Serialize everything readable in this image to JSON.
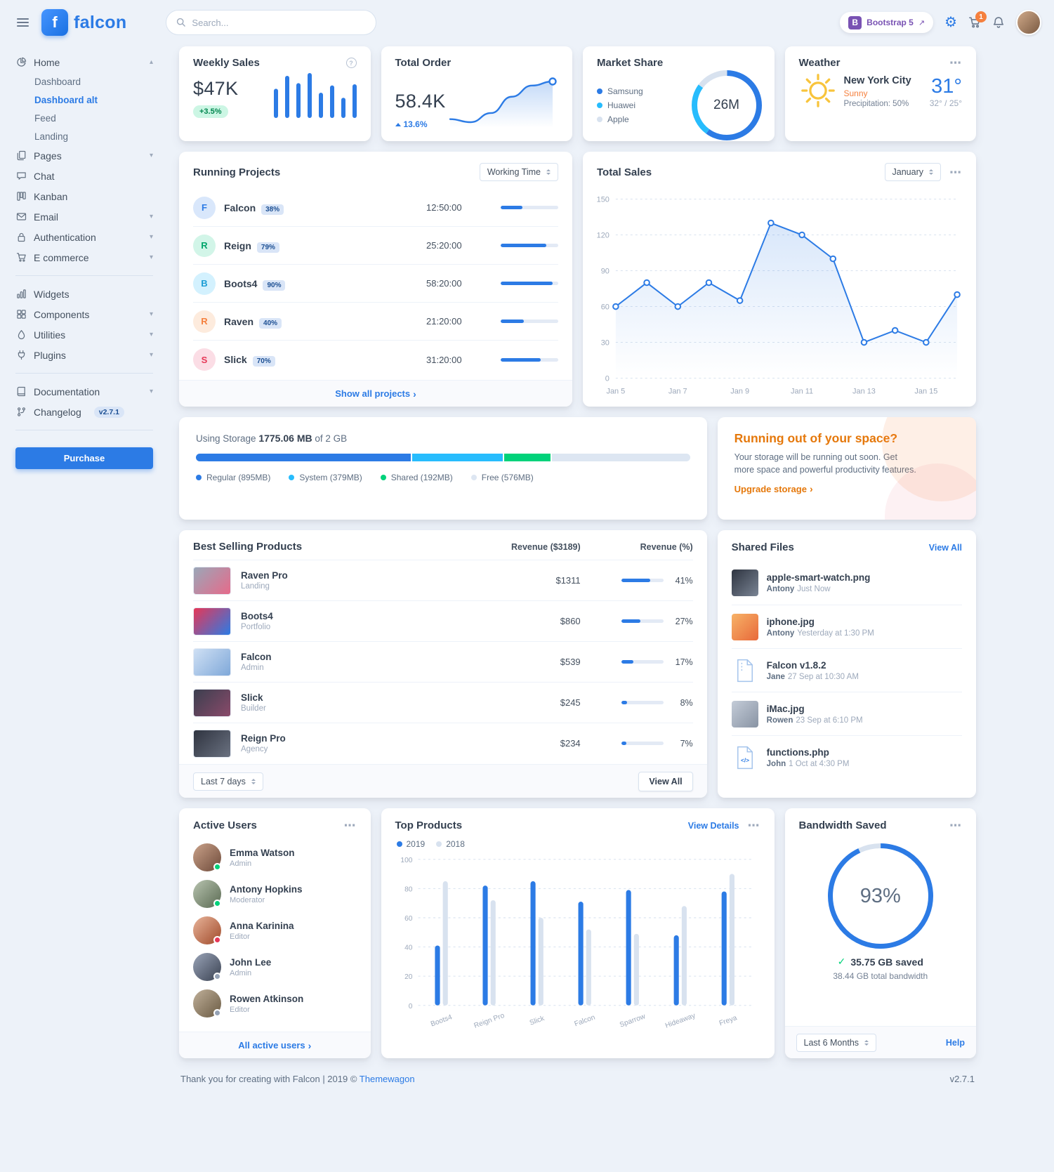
{
  "colors": {
    "primary": "#2c7be5",
    "success": "#00d27a",
    "info": "#27bcfd",
    "warning": "#f5803e",
    "danger": "#e63757",
    "gray": "#d8e2ef",
    "body_bg": "#edf2f9"
  },
  "navbar": {
    "brand": "falcon",
    "search": {
      "placeholder": "Search..."
    },
    "bootstrap_badge": {
      "b": "B",
      "label": "Bootstrap 5"
    },
    "cart_count": "1"
  },
  "sidebar": {
    "purchase_label": "Purchase",
    "items": [
      {
        "label": "Home",
        "icon": "chart-pie-icon",
        "chevron": "up",
        "active": true,
        "children": [
          {
            "label": "Dashboard",
            "active": false
          },
          {
            "label": "Dashboard alt",
            "active": true
          },
          {
            "label": "Feed",
            "active": false
          },
          {
            "label": "Landing",
            "active": false
          }
        ]
      },
      {
        "label": "Pages",
        "icon": "pages-icon",
        "chevron": "down"
      },
      {
        "label": "Chat",
        "icon": "chat-icon"
      },
      {
        "label": "Kanban",
        "icon": "kanban-icon"
      },
      {
        "label": "Email",
        "icon": "email-icon",
        "chevron": "down"
      },
      {
        "label": "Authentication",
        "icon": "lock-icon",
        "chevron": "down"
      },
      {
        "label": "E commerce",
        "icon": "cart-icon",
        "chevron": "down",
        "divider_after": true
      },
      {
        "label": "Widgets",
        "icon": "widgets-icon"
      },
      {
        "label": "Components",
        "icon": "components-icon",
        "chevron": "down"
      },
      {
        "label": "Utilities",
        "icon": "utilities-icon",
        "chevron": "down"
      },
      {
        "label": "Plugins",
        "icon": "plugins-icon",
        "chevron": "down",
        "divider_after": true
      },
      {
        "label": "Documentation",
        "icon": "docs-icon",
        "chevron": "down"
      },
      {
        "label": "Changelog",
        "icon": "changelog-icon",
        "badge": "v2.7.1",
        "divider_after": true
      }
    ]
  },
  "cards": {
    "weekly_sales": {
      "title": "Weekly Sales",
      "value": "$47K",
      "badge": "+3.5%"
    },
    "total_order": {
      "title": "Total Order",
      "value": "58.4K",
      "delta": "13.6%"
    },
    "market_share": {
      "title": "Market Share",
      "center": "26M",
      "legend": [
        {
          "label": "Samsung",
          "color": "#2c7be5"
        },
        {
          "label": "Huawei",
          "color": "#27bcfd"
        },
        {
          "label": "Apple",
          "color": "#d8e2ef"
        }
      ]
    },
    "weather": {
      "title": "Weather",
      "city": "New York City",
      "condition": "Sunny",
      "precipitation": "Precipitation: 50%",
      "temp": "31°",
      "range": "32° / 25°"
    },
    "running_projects": {
      "title": "Running Projects",
      "select": "Working Time",
      "footer_link": "Show all projects",
      "projects": [
        {
          "initial": "F",
          "name": "Falcon",
          "pct_label": "38%",
          "progress": 38,
          "time": "12:50:00",
          "color": "#2c7be5",
          "bg": "#d9e7fb"
        },
        {
          "initial": "R",
          "name": "Reign",
          "pct_label": "79%",
          "progress": 79,
          "time": "25:20:00",
          "color": "#00a56b",
          "bg": "#d2f5e8"
        },
        {
          "initial": "B",
          "name": "Boots4",
          "pct_label": "90%",
          "progress": 90,
          "time": "58:20:00",
          "color": "#1b9dd4",
          "bg": "#d3f1fe"
        },
        {
          "initial": "R",
          "name": "Raven",
          "pct_label": "40%",
          "progress": 40,
          "time": "21:20:00",
          "color": "#f5803e",
          "bg": "#fdebdd"
        },
        {
          "initial": "S",
          "name": "Slick",
          "pct_label": "70%",
          "progress": 70,
          "time": "31:20:00",
          "color": "#e63757",
          "bg": "#fbdde5"
        }
      ]
    },
    "total_sales": {
      "title": "Total Sales",
      "select": "January"
    },
    "storage": {
      "label_prefix": "Using Storage",
      "used": "1775.06 MB",
      "label_suffix": "of 2 GB",
      "segments": [
        {
          "label": "Regular (895MB)",
          "mb": 895,
          "color": "#2c7be5"
        },
        {
          "label": "System (379MB)",
          "mb": 379,
          "color": "#27bcfd"
        },
        {
          "label": "Shared (192MB)",
          "mb": 192,
          "color": "#00d27a"
        },
        {
          "label": "Free (576MB)",
          "mb": 576,
          "color": "#dde6f2"
        }
      ]
    },
    "space_ad": {
      "title": "Running out of your space?",
      "body": "Your storage will be running out soon. Get more space and powerful productivity features.",
      "link": "Upgrade storage"
    },
    "best_selling": {
      "title": "Best Selling Products",
      "col_revenue": "Revenue ($3189)",
      "col_pct": "Revenue (%)",
      "select": "Last 7 days",
      "view_all": "View All",
      "products": [
        {
          "name": "Raven Pro",
          "category": "Landing",
          "revenue": "$1311",
          "pct": 41,
          "pct_label": "41%"
        },
        {
          "name": "Boots4",
          "category": "Portfolio",
          "revenue": "$860",
          "pct": 27,
          "pct_label": "27%"
        },
        {
          "name": "Falcon",
          "category": "Admin",
          "revenue": "$539",
          "pct": 17,
          "pct_label": "17%"
        },
        {
          "name": "Slick",
          "category": "Builder",
          "revenue": "$245",
          "pct": 8,
          "pct_label": "8%"
        },
        {
          "name": "Reign Pro",
          "category": "Agency",
          "revenue": "$234",
          "pct": 7,
          "pct_label": "7%"
        }
      ]
    },
    "shared_files": {
      "title": "Shared Files",
      "view_all": "View All",
      "files": [
        {
          "name": "apple-smart-watch.png",
          "user": "Antony",
          "time": "Just Now",
          "thumb": "photo-dark"
        },
        {
          "name": "iphone.jpg",
          "user": "Antony",
          "time": "Yesterday at 1:30 PM",
          "thumb": "photo-orange"
        },
        {
          "name": "Falcon v1.8.2",
          "user": "Jane",
          "time": "27 Sep at 10:30 AM",
          "thumb": "zip"
        },
        {
          "name": "iMac.jpg",
          "user": "Rowen",
          "time": "23 Sep at 6:10 PM",
          "thumb": "photo-gray"
        },
        {
          "name": "functions.php",
          "user": "John",
          "time": "1 Oct at 4:30 PM",
          "thumb": "code"
        }
      ]
    },
    "active_users": {
      "title": "Active Users",
      "footer_link": "All active users",
      "users": [
        {
          "name": "Emma Watson",
          "role": "Admin",
          "status": "online"
        },
        {
          "name": "Antony Hopkins",
          "role": "Moderator",
          "status": "online"
        },
        {
          "name": "Anna Karinina",
          "role": "Editor",
          "status": "busy"
        },
        {
          "name": "John Lee",
          "role": "Admin",
          "status": "offline"
        },
        {
          "name": "Rowen Atkinson",
          "role": "Editor",
          "status": "offline"
        }
      ]
    },
    "top_products": {
      "title": "Top Products",
      "view_details": "View Details"
    },
    "bandwidth": {
      "title": "Bandwidth Saved",
      "pct_label": "93%",
      "saved": "35.75 GB saved",
      "total": "38.44 GB total bandwidth",
      "select": "Last 6 Months",
      "help": "Help"
    }
  },
  "footer": {
    "text": "Thank you for creating with Falcon | 2019 © ",
    "brand_link": "Themewagon",
    "version": "v2.7.1"
  },
  "chart_data": [
    {
      "id": "weekly_sales_bars",
      "type": "bar",
      "values": [
        52,
        75,
        62,
        80,
        45,
        58,
        36,
        60
      ],
      "color": "#2c7be5",
      "title": "Weekly Sales mini bars"
    },
    {
      "id": "total_order_line",
      "type": "area",
      "values": [
        20,
        17,
        26,
        42,
        53,
        57
      ],
      "color": "#2c7be5",
      "title": "Total Order trend"
    },
    {
      "id": "market_share_donut",
      "type": "pie",
      "labels": [
        "Samsung",
        "Huawei",
        "Apple"
      ],
      "values": [
        60,
        25,
        15
      ],
      "colors": [
        "#2c7be5",
        "#27bcfd",
        "#d8e2ef"
      ],
      "center_label": "26M",
      "title": "Market Share"
    },
    {
      "id": "total_sales_line",
      "type": "line",
      "title": "Total Sales",
      "x_labels": [
        "Jan 5",
        "Jan 7",
        "Jan 9",
        "Jan 11",
        "Jan 13",
        "Jan 15"
      ],
      "values": [
        60,
        80,
        60,
        80,
        65,
        130,
        120,
        100,
        30,
        40,
        30,
        70
      ],
      "ylim": [
        0,
        150
      ],
      "yticks": [
        0,
        30,
        60,
        90,
        120,
        150
      ],
      "color": "#2c7be5",
      "grid": "dashed-horizontal",
      "legend_position": "none"
    },
    {
      "id": "top_products_bars",
      "type": "bar",
      "title": "Top Products",
      "categories": [
        "Boots4",
        "Reign Pro",
        "Slick",
        "Falcon",
        "Sparrow",
        "Hideaway",
        "Freya"
      ],
      "series": [
        {
          "name": "2019",
          "color": "#2c7be5",
          "values": [
            41,
            82,
            85,
            71,
            79,
            48,
            78
          ]
        },
        {
          "name": "2018",
          "color": "#d8e2ef",
          "values": [
            85,
            72,
            60,
            52,
            49,
            68,
            90
          ]
        }
      ],
      "ylim": [
        0,
        100
      ],
      "yticks": [
        0,
        20,
        40,
        60,
        80,
        100
      ],
      "grid": "dashed-horizontal",
      "legend_position": "top-left"
    },
    {
      "id": "bandwidth_donut",
      "type": "pie",
      "labels": [
        "saved",
        "remaining"
      ],
      "values": [
        93,
        7
      ],
      "colors": [
        "#2c7be5",
        "#d8e2ef"
      ],
      "center_label": "93%",
      "title": "Bandwidth Saved"
    }
  ]
}
